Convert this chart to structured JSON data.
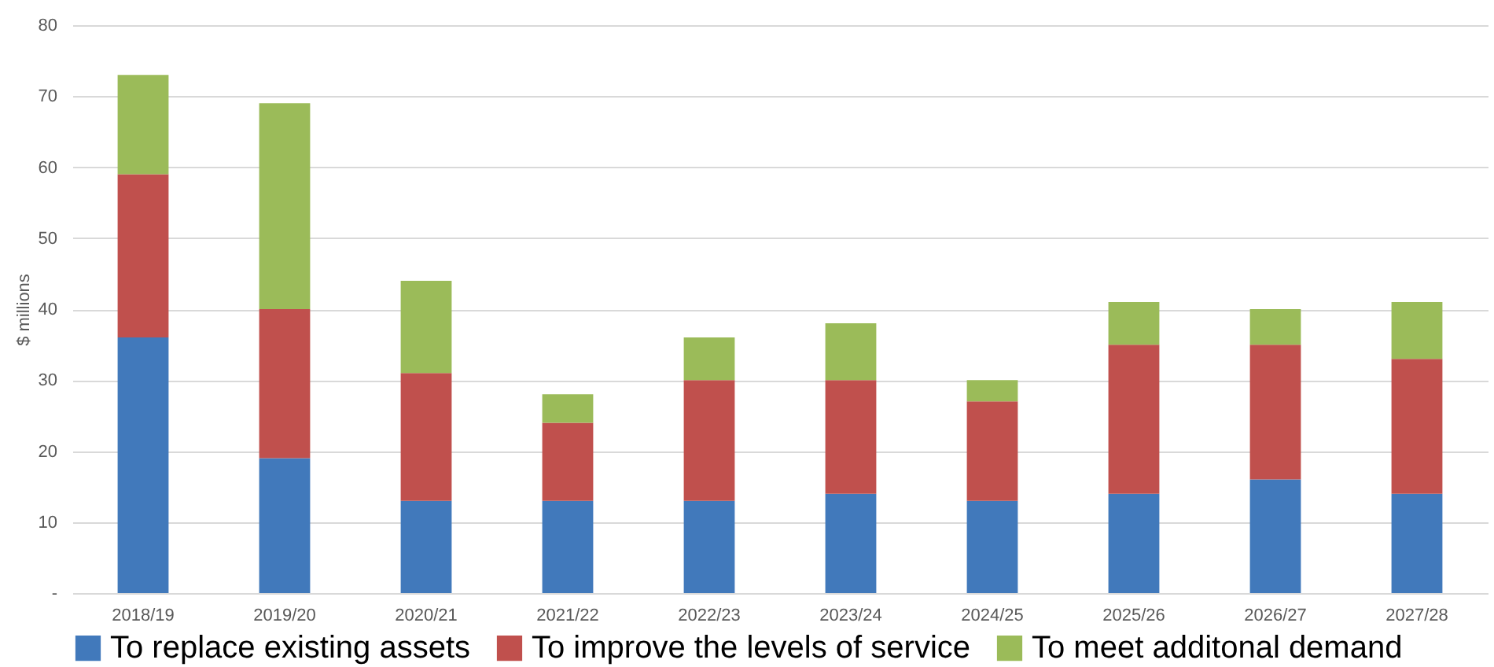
{
  "chart_data": {
    "type": "bar",
    "ylabel": "$ millions",
    "stacked": true,
    "categories": [
      "2018/19",
      "2019/20",
      "2020/21",
      "2021/22",
      "2022/23",
      "2023/24",
      "2024/25",
      "2025/26",
      "2026/27",
      "2027/28"
    ],
    "series": [
      {
        "name": "To replace existing assets",
        "color": "#4179bb",
        "values": [
          36,
          19,
          13,
          13,
          13,
          14,
          13,
          14,
          16,
          14
        ]
      },
      {
        "name": "To improve the levels of service",
        "color": "#c0504d",
        "values": [
          23,
          21,
          18,
          11,
          17,
          16,
          14,
          21,
          19,
          19
        ]
      },
      {
        "name": "To meet additonal demand",
        "color": "#9bbb59",
        "values": [
          14,
          29,
          13,
          4,
          6,
          8,
          3,
          6,
          5,
          8
        ]
      }
    ],
    "ylim": [
      0,
      80
    ],
    "yticks": [
      {
        "value": 0,
        "label": "-"
      },
      10,
      20,
      30,
      40,
      50,
      60,
      70,
      80
    ],
    "grid": "y",
    "legend": "bottom"
  }
}
